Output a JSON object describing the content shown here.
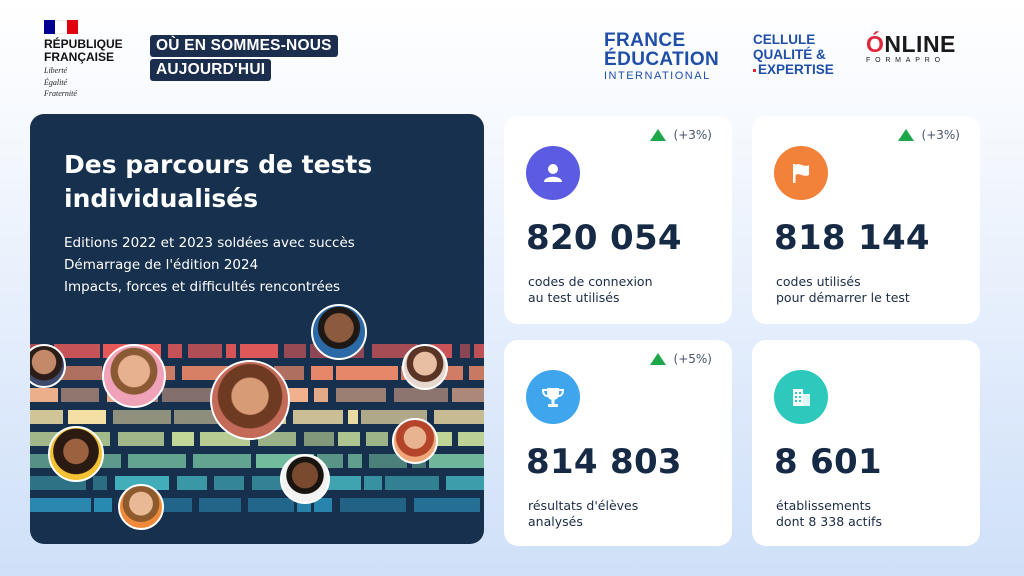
{
  "header": {
    "republique": {
      "line1": "RÉPUBLIQUE",
      "line2": "FRANÇAISE",
      "motto1": "Liberté",
      "motto2": "Égalité",
      "motto3": "Fraternité",
      "flag_colors": [
        "#000091",
        "#ffffff",
        "#e1000f"
      ]
    },
    "tagline": {
      "line1": "OÙ EN SOMMES-NOUS",
      "line2": "AUJOURD'HUI"
    },
    "france_education": {
      "line1": "FRANCE",
      "line2": "ÉDUCATION",
      "line3": "INTERNATIONAL"
    },
    "cellule": {
      "line1": "CELLULE",
      "line2": "QUALITÉ &",
      "line3": "EXPERTISE"
    },
    "online": {
      "lead": "Ó",
      "rest": "NLINE",
      "sub": "FORMAPRO"
    }
  },
  "hero": {
    "title": "Des parcours de tests individualisés",
    "bullets": [
      "Editions 2022 et 2023 soldées avec succès",
      "Démarrage de l'édition 2024",
      "Impacts, forces et difficultés rencontrées"
    ],
    "stripe_colors": [
      "#ea5a59",
      "#f08a6a",
      "#f5b48e",
      "#f7e3a6",
      "#c8de9b",
      "#79c4a3",
      "#44b3bd",
      "#2b8fb8"
    ]
  },
  "stats": [
    {
      "icon": "user-icon",
      "icon_bg": "#5b5ce2",
      "delta": "(+3%)",
      "value": "820 054",
      "label_line1": "codes de connexion",
      "label_line2": "au test utilisés"
    },
    {
      "icon": "flag-icon",
      "icon_bg": "#f2813a",
      "delta": "(+3%)",
      "value": "818 144",
      "label_line1": "codes utilisés",
      "label_line2": "pour démarrer le test"
    },
    {
      "icon": "trophy-icon",
      "icon_bg": "#3fa6ee",
      "delta": "(+5%)",
      "value": "814 803",
      "label_line1": "résultats d'élèves",
      "label_line2": "analysés"
    },
    {
      "icon": "building-icon",
      "icon_bg": "#2ec9bd",
      "delta": "",
      "value": "8 601",
      "label_line1": "établissements",
      "label_line2": "dont 8 338 actifs"
    }
  ],
  "colors": {
    "accent_up": "#1fa64a",
    "navy": "#17304d"
  }
}
